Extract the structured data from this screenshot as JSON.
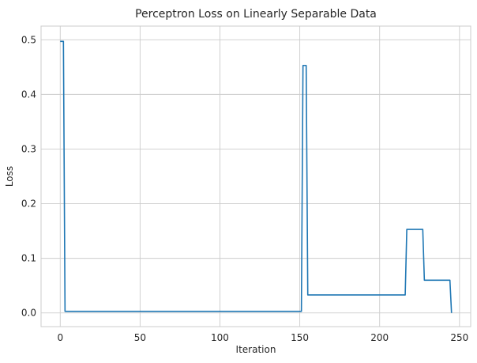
{
  "chart_data": {
    "type": "line",
    "title": "Perceptron Loss on Linearly Separable Data",
    "xlabel": "Iteration",
    "ylabel": "Loss",
    "xlim": [
      -12,
      257
    ],
    "ylim": [
      -0.025,
      0.525
    ],
    "xticks": [
      0,
      50,
      100,
      150,
      200,
      250
    ],
    "yticks": [
      0.0,
      0.1,
      0.2,
      0.3,
      0.4,
      0.5
    ],
    "ytick_labels": [
      "0.0",
      "0.1",
      "0.2",
      "0.3",
      "0.4",
      "0.5"
    ],
    "grid": true,
    "line_color": "#1f77b4",
    "series": [
      {
        "x": [
          0,
          2,
          3,
          151,
          152,
          154,
          155,
          216,
          217,
          227,
          228,
          244,
          245
        ],
        "y": [
          0.497,
          0.497,
          0.003,
          0.003,
          0.453,
          0.453,
          0.033,
          0.033,
          0.153,
          0.153,
          0.06,
          0.06,
          0.0
        ]
      }
    ]
  }
}
